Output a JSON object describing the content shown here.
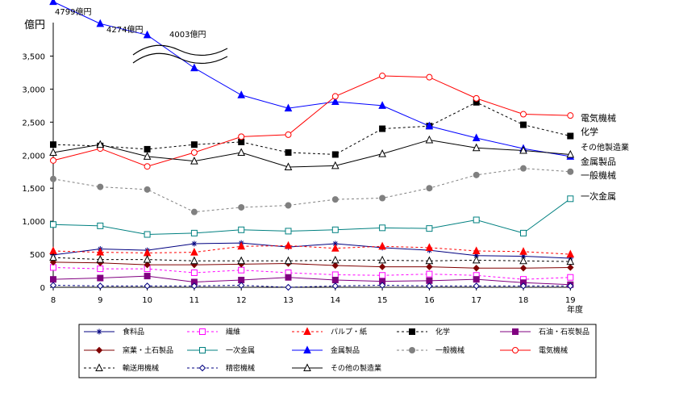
{
  "chart_data": {
    "type": "line",
    "ylabel": "億円",
    "xlabel": "年度",
    "x": [
      8,
      9,
      10,
      11,
      12,
      13,
      14,
      15,
      16,
      17,
      18,
      19
    ],
    "ylim": [
      0,
      4000
    ],
    "y_axis_break": [
      3500,
      4000
    ],
    "yticks": [
      0,
      500,
      1000,
      1500,
      2000,
      2500,
      3000,
      3500
    ],
    "ytick_labels": [
      "0",
      "500",
      "1,000",
      "1,500",
      "2,000",
      "2,500",
      "3,000",
      "3,500"
    ],
    "grid": false,
    "legend_position": "bottom",
    "annotations": [
      {
        "text": "4799億円",
        "series": "金属製品",
        "x": 8,
        "value": 4799
      },
      {
        "text": "4274億円",
        "series": "金属製品",
        "x": 9,
        "value": 4274
      },
      {
        "text": "4003億円",
        "series": "金属製品",
        "x": 10,
        "value": 4003
      }
    ],
    "series": [
      {
        "name": "食料品",
        "color": "#000080",
        "dash": "solid",
        "marker": "asterisk",
        "values": [
          490,
          580,
          560,
          660,
          670,
          610,
          660,
          600,
          560,
          480,
          470,
          440
        ]
      },
      {
        "name": "繊維",
        "color": "#ff00ff",
        "dash": "dash",
        "marker": "square-open",
        "values": [
          300,
          280,
          280,
          220,
          260,
          220,
          190,
          180,
          200,
          180,
          120,
          150
        ]
      },
      {
        "name": "パルプ・紙",
        "color": "#ff0000",
        "dash": "dash",
        "marker": "triangle",
        "values": [
          550,
          530,
          520,
          530,
          620,
          630,
          590,
          620,
          600,
          550,
          540,
          500
        ]
      },
      {
        "name": "化学",
        "color": "#000000",
        "dash": "dash",
        "marker": "square",
        "values": [
          2160,
          2140,
          2090,
          2160,
          2200,
          2040,
          2010,
          2400,
          2440,
          2800,
          2460,
          2290
        ]
      },
      {
        "name": "石油・石炭製品",
        "color": "#800080",
        "dash": "solid",
        "marker": "square",
        "values": [
          120,
          140,
          170,
          80,
          110,
          150,
          110,
          90,
          100,
          120,
          70,
          40
        ]
      },
      {
        "name": "窯業・土石製品",
        "color": "#800000",
        "dash": "solid",
        "marker": "diamond",
        "values": [
          380,
          370,
          340,
          340,
          350,
          360,
          330,
          310,
          310,
          290,
          290,
          300
        ]
      },
      {
        "name": "一次金属",
        "color": "#008080",
        "dash": "solid",
        "marker": "square-open",
        "values": [
          950,
          930,
          800,
          820,
          870,
          850,
          870,
          900,
          890,
          1020,
          820,
          1340
        ]
      },
      {
        "name": "金属製品",
        "color": "#0000ff",
        "dash": "solid",
        "marker": "triangle",
        "values": [
          4799,
          4274,
          4003,
          3320,
          2910,
          2710,
          2810,
          2750,
          2440,
          2260,
          2100,
          1980
        ]
      },
      {
        "name": "一般機械",
        "color": "#808080",
        "dash": "dash",
        "marker": "circle",
        "values": [
          1640,
          1520,
          1480,
          1140,
          1210,
          1240,
          1330,
          1350,
          1500,
          1700,
          1800,
          1750
        ]
      },
      {
        "name": "電気機械",
        "color": "#ff0000",
        "dash": "solid",
        "marker": "circle-open",
        "values": [
          1920,
          2100,
          1830,
          2040,
          2280,
          2310,
          2890,
          3200,
          3180,
          2860,
          2620,
          2600
        ]
      },
      {
        "name": "輸送用機械",
        "color": "#000000",
        "dash": "dash",
        "marker": "triangle-open",
        "values": [
          450,
          420,
          420,
          400,
          400,
          400,
          410,
          410,
          400,
          410,
          400,
          390
        ]
      },
      {
        "name": "精密機械",
        "color": "#000080",
        "dash": "dash",
        "marker": "diamond-open",
        "values": [
          30,
          20,
          20,
          20,
          30,
          0,
          20,
          30,
          20,
          20,
          20,
          20
        ]
      },
      {
        "name": "その他の製造業",
        "color": "#000000",
        "dash": "solid",
        "marker": "triangle-open",
        "values": [
          2040,
          2160,
          1980,
          1910,
          2040,
          1820,
          1840,
          2020,
          2230,
          2110,
          2070,
          2010
        ]
      }
    ],
    "end_labels": [
      "電気機械",
      "化学",
      "その他製造業",
      "金属製品",
      "一般機械",
      "一次金属"
    ]
  }
}
